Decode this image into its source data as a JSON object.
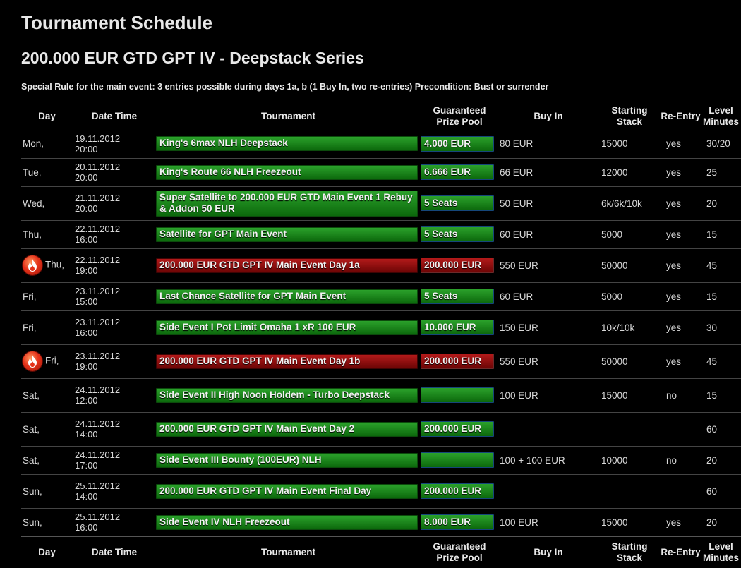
{
  "page_title": "Tournament Schedule",
  "series_title": "200.000 EUR GTD GPT IV - Deepstack Series",
  "special_rule": "Special Rule for the main event: 3 entries possible during days 1a, b (1 Buy In, two re-entries) Precondition: Bust or surrender",
  "headers": {
    "day": "Day",
    "datetime": "Date Time",
    "tournament": "Tournament",
    "prize_1": "Guaranteed",
    "prize_2": "Prize Pool",
    "buyin": "Buy In",
    "stack_1": "Starting",
    "stack_2": "Stack",
    "reentry": "Re-Entry",
    "level_1": "Level",
    "level_2": "Minutes"
  },
  "colors": {
    "green_start": "#2ba12b",
    "green_end": "#0c680c",
    "red_start": "#b31a1a",
    "red_end": "#6c0505"
  },
  "rows": [
    {
      "day": "Mon,",
      "date": "19.11.2012",
      "time": "20:00",
      "tournament": "King's 6max NLH Deepstack",
      "prize": "4.000 EUR",
      "buyin": "80 EUR",
      "stack": "15000",
      "reentry": "yes",
      "level": "30/20",
      "main": false
    },
    {
      "day": "Tue,",
      "date": "20.11.2012",
      "time": "20:00",
      "tournament": "King's Route 66 NLH Freezeout",
      "prize": "6.666 EUR",
      "buyin": "66 EUR",
      "stack": "12000",
      "reentry": "yes",
      "level": "25",
      "main": false
    },
    {
      "day": "Wed,",
      "date": "21.11.2012",
      "time": "20:00",
      "tournament": "Super Satellite to 200.000 EUR GTD Main Event 1 Rebuy & Addon 50 EUR",
      "prize": "5 Seats",
      "buyin": "50 EUR",
      "stack": "6k/6k/10k",
      "reentry": "yes",
      "level": "20",
      "main": false
    },
    {
      "day": "Thu,",
      "date": "22.11.2012",
      "time": "16:00",
      "tournament": "Satellite for GPT Main Event",
      "prize": "5 Seats",
      "buyin": "60 EUR",
      "stack": "5000",
      "reentry": "yes",
      "level": "15",
      "main": false
    },
    {
      "day": "Thu,",
      "date": "22.11.2012",
      "time": "19:00",
      "tournament": "200.000 EUR GTD GPT IV Main Event Day 1a",
      "prize": "200.000 EUR",
      "buyin": "550 EUR",
      "stack": "50000",
      "reentry": "yes",
      "level": "45",
      "main": true
    },
    {
      "day": "Fri,",
      "date": "23.11.2012",
      "time": "15:00",
      "tournament": "Last Chance Satellite for GPT Main Event",
      "prize": "5 Seats",
      "buyin": "60 EUR",
      "stack": "5000",
      "reentry": "yes",
      "level": "15",
      "main": false
    },
    {
      "day": "Fri,",
      "date": "23.11.2012",
      "time": "16:00",
      "tournament": "Side Event I Pot Limit Omaha 1 xR 100 EUR",
      "prize": "10.000 EUR",
      "buyin": "150 EUR",
      "stack": "10k/10k",
      "reentry": "yes",
      "level": "30",
      "main": false
    },
    {
      "day": "Fri,",
      "date": "23.11.2012",
      "time": "19:00",
      "tournament": "200.000 EUR GTD GPT IV Main Event Day 1b",
      "prize": "200.000 EUR",
      "buyin": "550 EUR",
      "stack": "50000",
      "reentry": "yes",
      "level": "45",
      "main": true
    },
    {
      "day": "Sat,",
      "date": "24.11.2012",
      "time": "12:00",
      "tournament": "Side Event II High Noon Holdem - Turbo Deepstack",
      "prize": "",
      "buyin": "100 EUR",
      "stack": "15000",
      "reentry": "no",
      "level": "15",
      "main": false
    },
    {
      "day": "Sat,",
      "date": "24.11.2012",
      "time": "14:00",
      "tournament": "200.000 EUR GTD GPT IV Main Event Day 2",
      "prize": "200.000 EUR",
      "buyin": "",
      "stack": "",
      "reentry": "",
      "level": "60",
      "main": false
    },
    {
      "day": "Sat,",
      "date": "24.11.2012",
      "time": "17:00",
      "tournament": "Side Event III Bounty (100EUR) NLH",
      "prize": "",
      "buyin": "100 + 100 EUR",
      "stack": "10000",
      "reentry": "no",
      "level": "20",
      "main": false
    },
    {
      "day": "Sun,",
      "date": "25.11.2012",
      "time": "14:00",
      "tournament": "200.000 EUR GTD GPT IV Main Event Final Day",
      "prize": "200.000 EUR",
      "buyin": "",
      "stack": "",
      "reentry": "",
      "level": "60",
      "main": false
    },
    {
      "day": "Sun,",
      "date": "25.11.2012",
      "time": "16:00",
      "tournament": "Side Event IV NLH Freezeout",
      "prize": "8.000 EUR",
      "buyin": "100 EUR",
      "stack": "15000",
      "reentry": "yes",
      "level": "20",
      "main": false
    }
  ],
  "row_icon": "fire-icon"
}
